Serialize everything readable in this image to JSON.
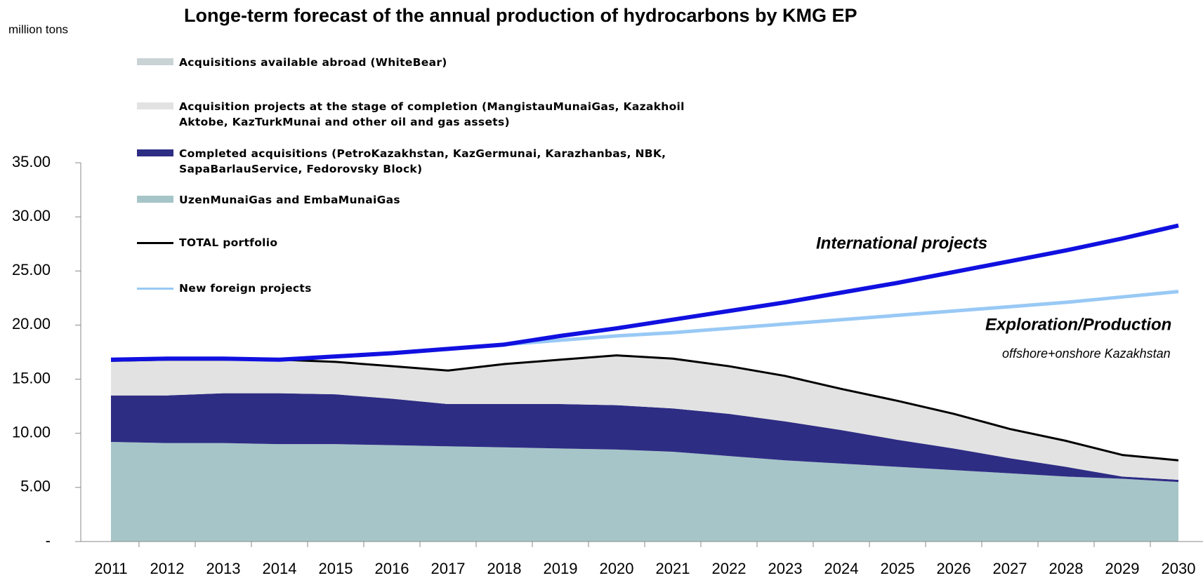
{
  "chart_data": {
    "type": "stacked_area_line",
    "title": "Longe-term forecast of the annual production of hydrocarbons by KMG EP",
    "y_label": "million tons",
    "categories": [
      "2011",
      "2012",
      "2013",
      "2014",
      "2015",
      "2016",
      "2017",
      "2018",
      "2019",
      "2020",
      "2021",
      "2022",
      "2023",
      "2024",
      "2025",
      "2026",
      "2027",
      "2028",
      "2029",
      "2030"
    ],
    "ylim": [
      0,
      35
    ],
    "yticks": [
      {
        "value": 0,
        "label": "-"
      },
      {
        "value": 5,
        "label": "5.00"
      },
      {
        "value": 10,
        "label": "10.00"
      },
      {
        "value": 15,
        "label": "15.00"
      },
      {
        "value": 20,
        "label": "20.00"
      },
      {
        "value": 25,
        "label": "25.00"
      },
      {
        "value": 30,
        "label": "30.00"
      },
      {
        "value": 35,
        "label": "35.00"
      }
    ],
    "series": [
      {
        "name": "Acquisitions available abroad (WhiteBear)",
        "kind": "area",
        "color": "#c9d3d6",
        "values": [
          0.1,
          0.1,
          0.1,
          0.1,
          0.1,
          0,
          0,
          0,
          0,
          0,
          0,
          0,
          0,
          0,
          0,
          0,
          0,
          0,
          0,
          0
        ]
      },
      {
        "name": "Acquisition projects at the stage of completion (MangistauMunaiGas, Kazakhoil Aktobe, KazTurkMunai and other oil and gas assets)",
        "kind": "area",
        "color": "#e2e2e2",
        "values": [
          3.2,
          3.3,
          3.1,
          3.1,
          3.0,
          3.0,
          3.1,
          3.7,
          4.1,
          4.6,
          4.6,
          4.4,
          4.2,
          3.8,
          3.6,
          3.2,
          2.7,
          2.4,
          2.0,
          1.8
        ]
      },
      {
        "name": "Completed acquisitions (PetroKazakhstan, KazGermunai, Karazhanbas, NBK, SapaBarlauService, Fedorovsky Block)",
        "kind": "area",
        "color": "#2e2d84",
        "values": [
          4.3,
          4.4,
          4.6,
          4.7,
          4.6,
          4.3,
          3.9,
          4.0,
          4.1,
          4.1,
          4.0,
          3.9,
          3.6,
          3.1,
          2.5,
          2.0,
          1.4,
          0.9,
          0.2,
          0.2
        ]
      },
      {
        "name": "UzenMunaiGas and EmbaMunaiGas",
        "kind": "area",
        "color": "#a6c5c8",
        "values": [
          9.2,
          9.1,
          9.1,
          9.0,
          9.0,
          8.9,
          8.8,
          8.7,
          8.6,
          8.5,
          8.3,
          7.9,
          7.5,
          7.2,
          6.9,
          6.6,
          6.3,
          6.0,
          5.8,
          5.5
        ]
      },
      {
        "name": "TOTAL portfolio",
        "kind": "line",
        "color": "#000000",
        "values": [
          16.7,
          16.8,
          16.8,
          16.8,
          16.6,
          16.2,
          15.8,
          16.4,
          16.8,
          17.2,
          16.9,
          16.2,
          15.3,
          14.1,
          13.0,
          11.8,
          10.4,
          9.3,
          8.0,
          7.5
        ]
      },
      {
        "name": "New foreign projects",
        "kind": "line",
        "color": "#99c9f5",
        "values": [
          16.8,
          16.9,
          16.9,
          16.8,
          17.1,
          17.4,
          17.8,
          18.2,
          18.6,
          19.0,
          19.3,
          19.7,
          20.1,
          20.5,
          20.9,
          21.3,
          21.7,
          22.1,
          22.6,
          23.1
        ]
      }
    ],
    "labeled_lines": [
      {
        "name": "International projects",
        "color": "#1010e0",
        "values": [
          16.8,
          16.9,
          16.9,
          16.8,
          17.1,
          17.4,
          17.8,
          18.2,
          19.0,
          19.7,
          20.5,
          21.3,
          22.1,
          23.0,
          23.9,
          24.9,
          25.9,
          26.9,
          28.0,
          29.2
        ]
      }
    ],
    "annotations": [
      "Exploration/Production",
      "offshore+onshore Kazakhstan"
    ]
  }
}
